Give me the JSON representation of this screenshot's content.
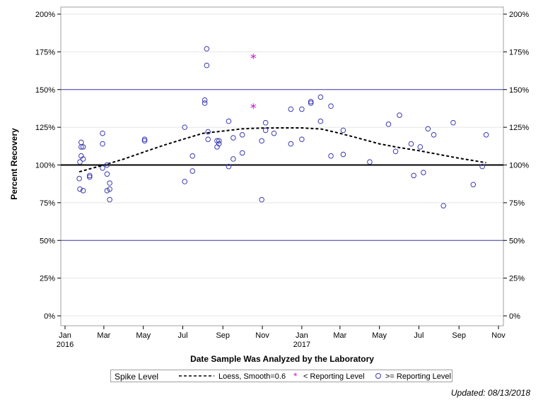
{
  "chart_data": {
    "type": "scatter",
    "title": "",
    "xlabel": "Date Sample Was Analyzed by the Laboratory",
    "ylabel": "Percent Recovery",
    "ylim": [
      0,
      200
    ],
    "xlim": [
      "2016-01-01",
      "2016-11-01 (following year)"
    ],
    "x_ticks": [
      {
        "label": "Jan",
        "sublabel": "2016",
        "date": "2016-01-01"
      },
      {
        "label": "Mar",
        "sublabel": "",
        "date": "2016-03-01"
      },
      {
        "label": "May",
        "sublabel": "",
        "date": "2016-05-01"
      },
      {
        "label": "Jul",
        "sublabel": "",
        "date": "2016-07-01"
      },
      {
        "label": "Sep",
        "sublabel": "",
        "date": "2016-09-01"
      },
      {
        "label": "Nov",
        "sublabel": "",
        "date": "2016-11-01"
      },
      {
        "label": "Jan",
        "sublabel": "2017",
        "date": "2017-01-01"
      },
      {
        "label": "Mar",
        "sublabel": "",
        "date": "2017-03-01"
      },
      {
        "label": "May",
        "sublabel": "",
        "date": "2017-05-01"
      },
      {
        "label": "Jul",
        "sublabel": "",
        "date": "2017-07-01"
      },
      {
        "label": "Sep",
        "sublabel": "",
        "date": "2017-09-01"
      },
      {
        "label": "Nov",
        "sublabel": "",
        "date": "2017-11-01"
      }
    ],
    "y_ticks": [
      {
        "label": "0%",
        "value": 0
      },
      {
        "label": "25%",
        "value": 25
      },
      {
        "label": "50%",
        "value": 50
      },
      {
        "label": "75%",
        "value": 75
      },
      {
        "label": "100%",
        "value": 100
      },
      {
        "label": "125%",
        "value": 125
      },
      {
        "label": "150%",
        "value": 150
      },
      {
        "label": "175%",
        "value": 175
      },
      {
        "label": "200%",
        "value": 200
      }
    ],
    "reference_lines": {
      "target": 100,
      "limits": [
        50,
        150
      ],
      "target_color": "#000000",
      "limit_color": "#3b3bb3"
    },
    "grid": true,
    "legend": {
      "title": "Spike Level",
      "placement": "bottom",
      "items": [
        "Loess, Smooth=0.6",
        "< Reporting Level",
        ">= Reporting Level"
      ]
    },
    "colors": {
      "ge_reporting": "#3a3ab0",
      "lt_reporting": "#d020d0",
      "loess": "#000000"
    },
    "series": [
      {
        "name": ">= Reporting Level",
        "marker": "circle",
        "points": [
          [
            "2016-01-23",
            91
          ],
          [
            "2016-01-24",
            102
          ],
          [
            "2016-01-24",
            84
          ],
          [
            "2016-01-26",
            115
          ],
          [
            "2016-01-26",
            112
          ],
          [
            "2016-01-26",
            106
          ],
          [
            "2016-01-29",
            112
          ],
          [
            "2016-01-29",
            104
          ],
          [
            "2016-01-29",
            83
          ],
          [
            "2016-02-08",
            92
          ],
          [
            "2016-02-08",
            93
          ],
          [
            "2016-02-28",
            121
          ],
          [
            "2016-02-28",
            114
          ],
          [
            "2016-02-28",
            98
          ],
          [
            "2016-03-06",
            100
          ],
          [
            "2016-03-06",
            94
          ],
          [
            "2016-03-06",
            83
          ],
          [
            "2016-03-10",
            88
          ],
          [
            "2016-03-10",
            84
          ],
          [
            "2016-03-10",
            77
          ],
          [
            "2016-05-03",
            117
          ],
          [
            "2016-05-03",
            116
          ],
          [
            "2016-07-04",
            125
          ],
          [
            "2016-07-04",
            89
          ],
          [
            "2016-07-16",
            106
          ],
          [
            "2016-07-16",
            96
          ],
          [
            "2016-08-04",
            143
          ],
          [
            "2016-08-04",
            141
          ],
          [
            "2016-08-07",
            177
          ],
          [
            "2016-08-07",
            166
          ],
          [
            "2016-08-09",
            122
          ],
          [
            "2016-08-09",
            117
          ],
          [
            "2016-08-23",
            116
          ],
          [
            "2016-08-23",
            112
          ],
          [
            "2016-08-26",
            116
          ],
          [
            "2016-08-26",
            114
          ],
          [
            "2016-09-10",
            129
          ],
          [
            "2016-09-10",
            99
          ],
          [
            "2016-09-17",
            118
          ],
          [
            "2016-09-17",
            104
          ],
          [
            "2016-10-01",
            120
          ],
          [
            "2016-10-01",
            108
          ],
          [
            "2016-10-31",
            116
          ],
          [
            "2016-10-31",
            77
          ],
          [
            "2016-11-06",
            128
          ],
          [
            "2016-11-06",
            123
          ],
          [
            "2016-11-19",
            121
          ],
          [
            "2016-12-15",
            137
          ],
          [
            "2016-12-15",
            114
          ],
          [
            "2017-01-01",
            137
          ],
          [
            "2017-01-01",
            117
          ],
          [
            "2017-01-15",
            142
          ],
          [
            "2017-01-15",
            141
          ],
          [
            "2017-01-30",
            145
          ],
          [
            "2017-01-30",
            129
          ],
          [
            "2017-02-15",
            139
          ],
          [
            "2017-02-15",
            106
          ],
          [
            "2017-03-06",
            123
          ],
          [
            "2017-03-06",
            107
          ],
          [
            "2017-04-16",
            102
          ],
          [
            "2017-05-15",
            127
          ],
          [
            "2017-05-26",
            109
          ],
          [
            "2017-06-01",
            133
          ],
          [
            "2017-06-19",
            114
          ],
          [
            "2017-06-23",
            93
          ],
          [
            "2017-07-03",
            112
          ],
          [
            "2017-07-08",
            95
          ],
          [
            "2017-07-15",
            124
          ],
          [
            "2017-07-24",
            120
          ],
          [
            "2017-08-08",
            73
          ],
          [
            "2017-08-23",
            128
          ],
          [
            "2017-09-23",
            87
          ],
          [
            "2017-10-07",
            99
          ],
          [
            "2017-10-13",
            120
          ]
        ]
      },
      {
        "name": "< Reporting Level",
        "marker": "asterisk",
        "points": [
          [
            "2016-10-18",
            172
          ],
          [
            "2016-10-18",
            139
          ]
        ]
      },
      {
        "name": "Loess, Smooth=0.6",
        "type": "line",
        "style": "dashed",
        "points": [
          [
            "2016-01-23",
            95.5
          ],
          [
            "2016-03-01",
            100
          ],
          [
            "2016-04-01",
            104
          ],
          [
            "2016-05-01",
            108.5
          ],
          [
            "2016-06-01",
            113
          ],
          [
            "2016-07-01",
            117
          ],
          [
            "2016-08-01",
            121
          ],
          [
            "2016-09-01",
            122.5
          ],
          [
            "2016-10-01",
            124
          ],
          [
            "2016-11-01",
            124.5
          ],
          [
            "2016-12-01",
            124.6
          ],
          [
            "2017-01-01",
            124.6
          ],
          [
            "2017-02-01",
            123.8
          ],
          [
            "2017-03-01",
            121
          ],
          [
            "2017-04-01",
            117.5
          ],
          [
            "2017-05-01",
            114
          ],
          [
            "2017-06-01",
            111.5
          ],
          [
            "2017-07-01",
            109.5
          ],
          [
            "2017-08-01",
            107
          ],
          [
            "2017-09-01",
            104.5
          ],
          [
            "2017-10-13",
            101.5
          ]
        ]
      }
    ]
  },
  "footer": {
    "updated": "Updated: 08/13/2018"
  }
}
